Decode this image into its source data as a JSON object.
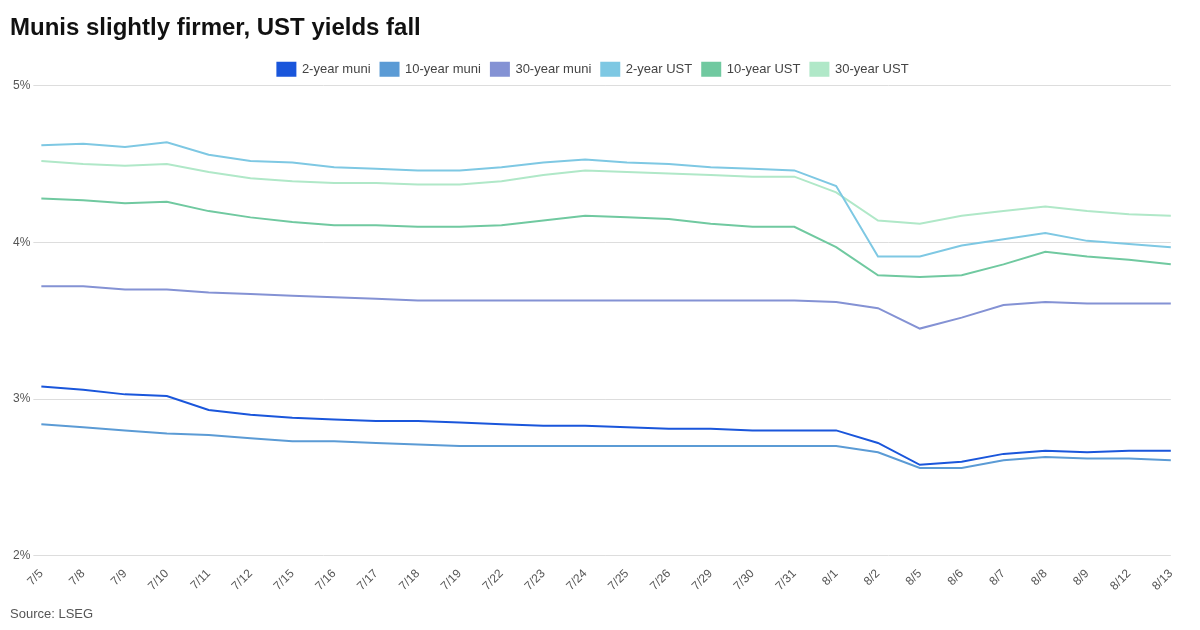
{
  "chart_data": {
    "type": "line",
    "title": "Munis slightly firmer, UST yields fall",
    "annotation": "Source: LSEG",
    "categories": [
      "7/5",
      "7/8",
      "7/9",
      "7/10",
      "7/11",
      "7/12",
      "7/15",
      "7/16",
      "7/17",
      "7/18",
      "7/19",
      "7/22",
      "7/23",
      "7/24",
      "7/25",
      "7/26",
      "7/29",
      "7/30",
      "7/31",
      "8/1",
      "8/2",
      "8/5",
      "8/6",
      "8/7",
      "8/8",
      "8/9",
      "8/12",
      "8/13"
    ],
    "series": [
      {
        "name": "2-year muni",
        "color": "#1a56db",
        "values": [
          3.08,
          3.06,
          3.03,
          3.02,
          2.93,
          2.9,
          2.88,
          2.87,
          2.86,
          2.86,
          2.85,
          2.84,
          2.83,
          2.83,
          2.82,
          2.81,
          2.81,
          2.8,
          2.8,
          2.8,
          2.72,
          2.58,
          2.6,
          2.65,
          2.67,
          2.66,
          2.67,
          2.67
        ]
      },
      {
        "name": "10-year muni",
        "color": "#5b9bd5",
        "values": [
          2.84,
          2.82,
          2.8,
          2.78,
          2.77,
          2.75,
          2.73,
          2.73,
          2.72,
          2.71,
          2.7,
          2.7,
          2.7,
          2.7,
          2.7,
          2.7,
          2.7,
          2.7,
          2.7,
          2.7,
          2.66,
          2.56,
          2.56,
          2.61,
          2.63,
          2.62,
          2.62,
          2.61
        ]
      },
      {
        "name": "30-year muni",
        "color": "#8492d4",
        "values": [
          3.72,
          3.72,
          3.7,
          3.7,
          3.68,
          3.67,
          3.66,
          3.65,
          3.64,
          3.63,
          3.63,
          3.63,
          3.63,
          3.63,
          3.63,
          3.63,
          3.63,
          3.63,
          3.63,
          3.62,
          3.58,
          3.45,
          3.52,
          3.6,
          3.62,
          3.61,
          3.61,
          3.61
        ]
      },
      {
        "name": "2-year UST",
        "color": "#7ec8e3",
        "values": [
          4.62,
          4.63,
          4.61,
          4.64,
          4.56,
          4.52,
          4.51,
          4.48,
          4.47,
          4.46,
          4.46,
          4.48,
          4.51,
          4.53,
          4.51,
          4.5,
          4.48,
          4.47,
          4.46,
          4.36,
          3.91,
          3.91,
          3.98,
          4.02,
          4.06,
          4.01,
          3.99,
          3.97
        ]
      },
      {
        "name": "10-year UST",
        "color": "#70c9a0",
        "values": [
          4.28,
          4.27,
          4.25,
          4.26,
          4.2,
          4.16,
          4.13,
          4.11,
          4.11,
          4.1,
          4.1,
          4.11,
          4.14,
          4.17,
          4.16,
          4.15,
          4.12,
          4.1,
          4.1,
          3.97,
          3.79,
          3.78,
          3.79,
          3.86,
          3.94,
          3.91,
          3.89,
          3.86
        ]
      },
      {
        "name": "30-year UST",
        "color": "#b0e8c8",
        "values": [
          4.52,
          4.5,
          4.49,
          4.5,
          4.45,
          4.41,
          4.39,
          4.38,
          4.38,
          4.37,
          4.37,
          4.39,
          4.43,
          4.46,
          4.45,
          4.44,
          4.43,
          4.42,
          4.42,
          4.32,
          4.14,
          4.12,
          4.17,
          4.2,
          4.23,
          4.2,
          4.18,
          4.17
        ]
      }
    ],
    "ylim": [
      2.0,
      5.0
    ],
    "yticks": [
      {
        "value": 2.0,
        "label": "2%"
      },
      {
        "value": 3.0,
        "label": "3%"
      },
      {
        "value": 4.0,
        "label": "4%"
      },
      {
        "value": 5.0,
        "label": "5%"
      }
    ],
    "grid": "y",
    "legend": "top"
  }
}
